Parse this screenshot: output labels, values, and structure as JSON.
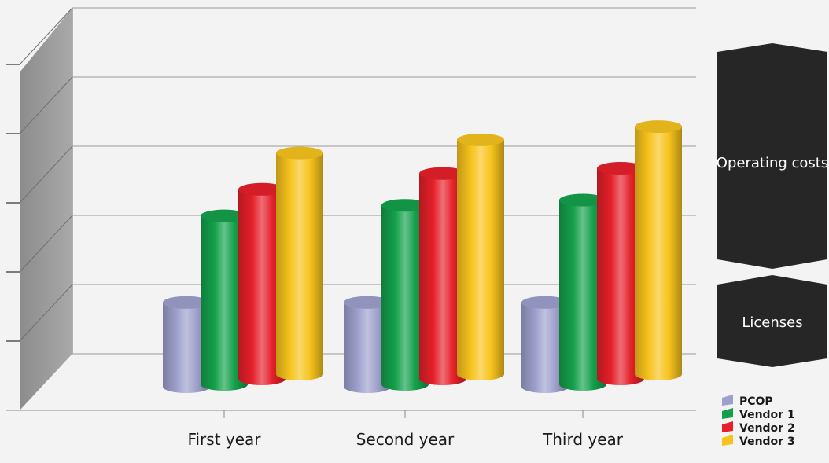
{
  "chart_data": {
    "type": "bar",
    "categories": [
      "First year",
      "Second year",
      "Third year"
    ],
    "series": [
      {
        "name": "PCOP",
        "values": [
          1.6,
          1.6,
          1.6
        ],
        "color": "#9ea0cc"
      },
      {
        "name": "Vendor 1",
        "values": [
          3.2,
          3.4,
          3.5
        ],
        "color": "#14a04b"
      },
      {
        "name": "Vendor 2",
        "values": [
          3.6,
          3.9,
          4.0
        ],
        "color": "#e5202a"
      },
      {
        "name": "Vendor 3",
        "values": [
          4.2,
          4.45,
          4.7
        ],
        "color": "#f7c31d"
      }
    ],
    "ylim": [
      0,
      5
    ],
    "grid": true,
    "legend": "bottom-right",
    "annotations": [
      "Operating costs",
      "Licenses"
    ]
  }
}
